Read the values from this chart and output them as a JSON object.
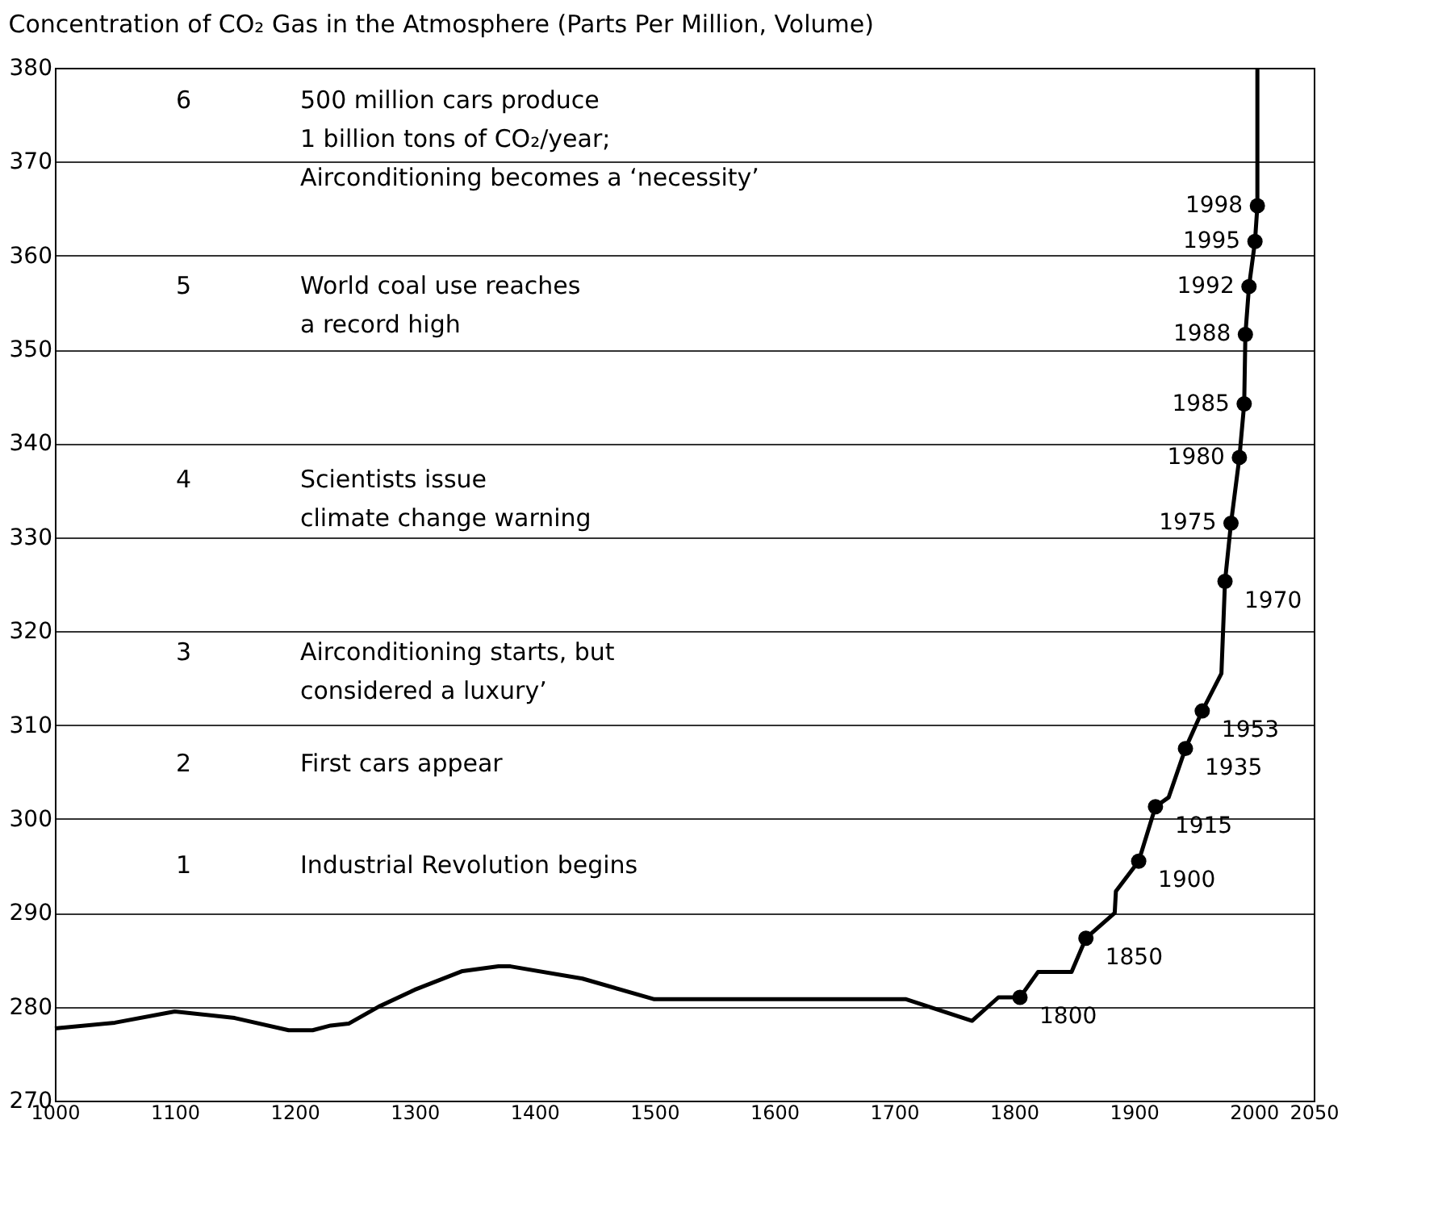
{
  "chart_data": {
    "type": "line",
    "title": "Concentration of CO₂ Gas in the Atmosphere (Parts Per Million, Volume)",
    "xlim": [
      1000,
      2050
    ],
    "xticks": [
      1000,
      1100,
      1200,
      1300,
      1400,
      1500,
      1600,
      1700,
      1800,
      1900,
      2000,
      2050
    ],
    "ylim": [
      270,
      380
    ],
    "yticks": [
      270,
      280,
      290,
      300,
      310,
      320,
      330,
      340,
      350,
      360,
      370,
      380
    ],
    "grid": "y",
    "series": [
      {
        "color": "#000000",
        "line_style": "solid",
        "marker": "none",
        "x": [
          1000,
          1050,
          1100,
          1150,
          1195,
          1215,
          1230,
          1245,
          1270,
          1300,
          1340,
          1370,
          1380,
          1440,
          1500,
          1710,
          1765,
          1787,
          1805,
          1820,
          1848,
          1860,
          1884,
          1885,
          1904,
          1918,
          1929,
          1943,
          1957,
          1973,
          1976,
          1981,
          1988,
          1992,
          1993,
          1996,
          2001,
          2003,
          2003
        ],
        "values": [
          277.7,
          278.3,
          279.5,
          278.8,
          277.5,
          277.5,
          278,
          278.2,
          280,
          281.8,
          283.8,
          284.3,
          284.3,
          283,
          280.8,
          280.8,
          278.5,
          281,
          281,
          283.7,
          283.7,
          287.3,
          290,
          292.3,
          295.5,
          301.3,
          302.3,
          307.5,
          311.5,
          315.5,
          325.3,
          331.5,
          338.5,
          344.2,
          351.6,
          356.7,
          361.5,
          365.3,
          380
        ]
      },
      {
        "type": "scatter",
        "color": "#000000",
        "marker": "circle",
        "x": [
          1805,
          1860,
          1904,
          1918,
          1943,
          1957,
          1976,
          1981,
          1988,
          1992,
          1993,
          1996,
          2001,
          2003
        ],
        "values": [
          281,
          287.3,
          295.5,
          301.3,
          307.5,
          311.5,
          325.3,
          331.5,
          338.5,
          344.2,
          351.6,
          356.7,
          361.5,
          365.3
        ]
      }
    ],
    "annotations": [
      {
        "text": "1800",
        "x": 1805,
        "y": 281
      },
      {
        "text": "1850",
        "x": 1860,
        "y": 287.3
      },
      {
        "text": "1900",
        "x": 1904,
        "y": 295.5
      },
      {
        "text": "1915",
        "x": 1918,
        "y": 301.3
      },
      {
        "text": "1935",
        "x": 1943,
        "y": 307.5
      },
      {
        "text": "1953",
        "x": 1957,
        "y": 311.5
      },
      {
        "text": "1970",
        "x": 1976,
        "y": 325.3
      },
      {
        "text": "1975",
        "x": 1981,
        "y": 331.5
      },
      {
        "text": "1980",
        "x": 1988,
        "y": 338.5
      },
      {
        "text": "1985",
        "x": 1992,
        "y": 344.2
      },
      {
        "text": "1988",
        "x": 1993,
        "y": 351.6
      },
      {
        "text": "1992",
        "x": 1996,
        "y": 356.7
      },
      {
        "text": "1995",
        "x": 2001,
        "y": 361.5
      },
      {
        "text": "1998",
        "x": 2003,
        "y": 365.3
      },
      "6",
      "500 million cars produce\n1 billion tons of CO₂/year;\nAirconditioning becomes a ‘necessity’",
      "5",
      "World coal use reaches\na record high",
      "4",
      "Scientists issue\nclimate change warning",
      "3",
      "Airconditioning starts, but\nconsidered a luxury’",
      "2",
      "First cars appear",
      "1",
      "Industrial Revolution begins"
    ]
  }
}
